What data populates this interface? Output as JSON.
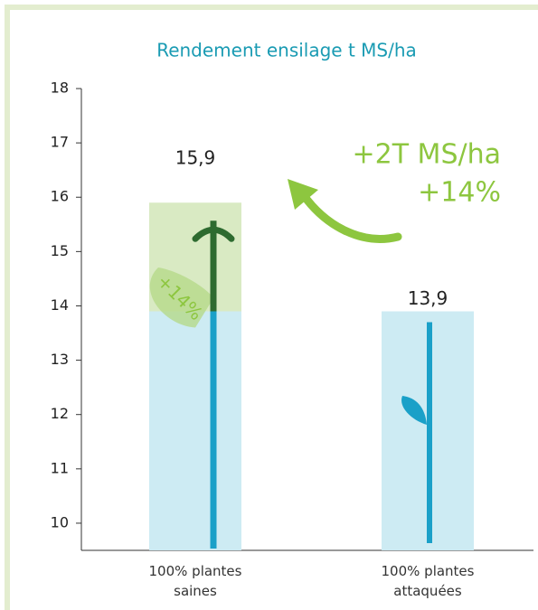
{
  "chart_data": {
    "type": "bar",
    "title": "Rendement ensilage t MS/ha",
    "categories": [
      "100% plantes saines",
      "100% plantes attaquées"
    ],
    "values": [
      15.9,
      13.9
    ],
    "value_labels": [
      "15,9",
      "13,9"
    ],
    "colors": [
      "#d9eac3",
      "#cdebf3"
    ],
    "ylim": [
      9.5,
      18
    ],
    "yticks": [
      10,
      11,
      12,
      13,
      14,
      15,
      16,
      17,
      18
    ],
    "annotations": [
      "+2T MS/ha",
      "+14%"
    ],
    "leaf_label": "+14%"
  }
}
